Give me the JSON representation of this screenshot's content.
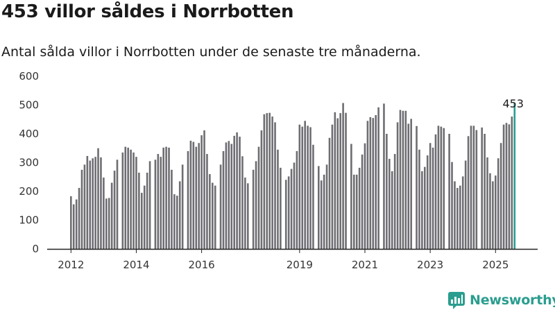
{
  "page": {
    "title": "453 villor såldes i Norrbotten",
    "subtitle": "Antal sålda villor i Norrbotten under de senaste tre månaderna.",
    "brand": "Newsworthy"
  },
  "colors": {
    "bar": "#6d6d72",
    "highlight": "#2a9d8f",
    "axis": "#222222",
    "brand": "#2a9d8f"
  },
  "chart_data": {
    "type": "bar",
    "title": "",
    "xlabel": "",
    "ylabel": "",
    "ylim": [
      0,
      600
    ],
    "yticks": [
      "0",
      "100",
      "200",
      "300",
      "400",
      "500",
      "600"
    ],
    "xticks": [
      "2012",
      "2014",
      "2016",
      "2019",
      "2021",
      "2023",
      "2025"
    ],
    "xtick_months": [
      "2012-01",
      "2014-01",
      "2016-01",
      "2019-01",
      "2021-01",
      "2023-01",
      "2025-01"
    ],
    "start_month": "2012-01",
    "end_month": "2025-08",
    "gaps": [
      "2013-07",
      "2014-07",
      "2015-07",
      "2016-07",
      "2017-07",
      "2018-07",
      "2019-07",
      "2020-07",
      "2021-07",
      "2022-07",
      "2023-07",
      "2024-07"
    ],
    "values": [
      183,
      155,
      172,
      212,
      275,
      293,
      323,
      307,
      315,
      320,
      350,
      318,
      248,
      175,
      177,
      230,
      272,
      310,
      335,
      355,
      352,
      345,
      335,
      320,
      265,
      195,
      220,
      265,
      305,
      310,
      330,
      320,
      352,
      355,
      352,
      275,
      190,
      185,
      235,
      293,
      340,
      376,
      372,
      355,
      368,
      395,
      412,
      330,
      260,
      230,
      220,
      293,
      340,
      370,
      375,
      365,
      393,
      405,
      390,
      322,
      248,
      228,
      275,
      305,
      355,
      412,
      468,
      472,
      473,
      460,
      440,
      345,
      282,
      240,
      252,
      278,
      300,
      340,
      432,
      425,
      445,
      428,
      423,
      362,
      288,
      238,
      258,
      293,
      386,
      432,
      475,
      454,
      472,
      507,
      473,
      365,
      258,
      258,
      282,
      328,
      367,
      445,
      458,
      455,
      465,
      492,
      505,
      400,
      313,
      270,
      330,
      440,
      483,
      480,
      480,
      435,
      452,
      427,
      345,
      270,
      285,
      325,
      368,
      352,
      398,
      428,
      425,
      420,
      400,
      302,
      235,
      212,
      220,
      252,
      307,
      392,
      428,
      428,
      413,
      422,
      400,
      318,
      263,
      235,
      255,
      315,
      368,
      432,
      438,
      433,
      460,
      508,
      480,
      388,
      305,
      290,
      333,
      375,
      410,
      452,
      455,
      453
    ],
    "annotation": {
      "label": "453",
      "month": "2025-08"
    }
  }
}
